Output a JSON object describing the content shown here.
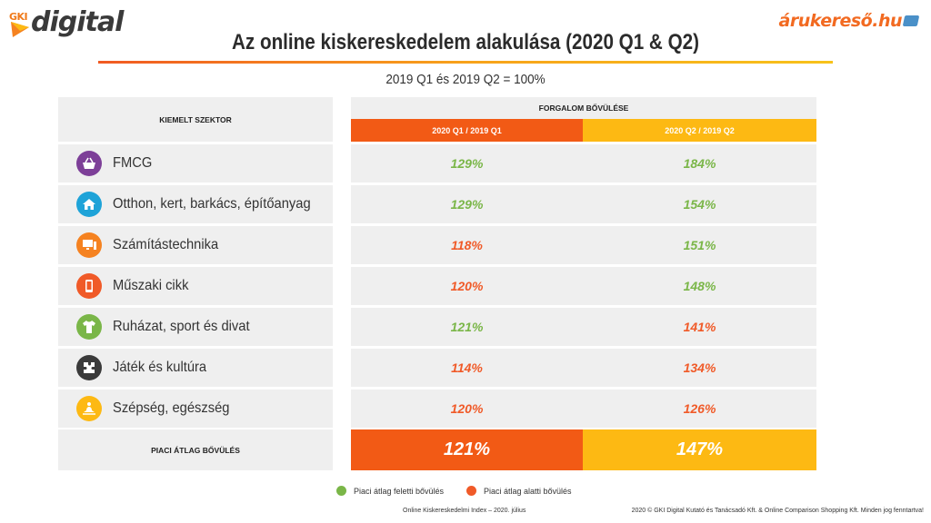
{
  "logos": {
    "left_badge": "GKI",
    "left_word": "digital",
    "right_word": "árukereső.hu"
  },
  "title": "Az online kiskereskedelem alakulása (2020 Q1 & Q2)",
  "subtitle": "2019 Q1 és 2019 Q2 = 100%",
  "table": {
    "sector_header": "KIEMELT SZEKTOR",
    "growth_header": "FORGALOM BŐVÜLÉSE",
    "col_q1": "2020 Q1 / 2019  Q1",
    "col_q2": "2020 Q2 / 2019  Q2",
    "rows": [
      {
        "icon": "basket-icon",
        "icon_color": "#7d3f98",
        "label": "FMCG",
        "q1": "129%",
        "q1_status": "above",
        "q2": "184%",
        "q2_status": "above"
      },
      {
        "icon": "house-garden-icon",
        "icon_color": "#1ea3d8",
        "label": "Otthon, kert, barkács, építőanyag",
        "q1": "129%",
        "q1_status": "above",
        "q2": "154%",
        "q2_status": "above"
      },
      {
        "icon": "computer-icon",
        "icon_color": "#f58220",
        "label": "Számítástechnika",
        "q1": "118%",
        "q1_status": "below",
        "q2": "151%",
        "q2_status": "above"
      },
      {
        "icon": "phone-icon",
        "icon_color": "#f05a28",
        "label": "Műszaki cikk",
        "q1": "120%",
        "q1_status": "below",
        "q2": "148%",
        "q2_status": "above"
      },
      {
        "icon": "tshirt-icon",
        "icon_color": "#7ab648",
        "label": "Ruházat, sport és divat",
        "q1": "121%",
        "q1_status": "above",
        "q2": "141%",
        "q2_status": "below"
      },
      {
        "icon": "puzzle-icon",
        "icon_color": "#3a3a3a",
        "label": "Játék és kultúra",
        "q1": "114%",
        "q1_status": "below",
        "q2": "134%",
        "q2_status": "below"
      },
      {
        "icon": "meditation-icon",
        "icon_color": "#fdb913",
        "label": "Szépség, egészség",
        "q1": "120%",
        "q1_status": "below",
        "q2": "126%",
        "q2_status": "below"
      }
    ],
    "average_label": "PIACI ÁTLAG BŐVÜLÉS",
    "average_q1": "121%",
    "average_q2": "147%"
  },
  "legend": {
    "above_label": "Piaci átlag feletti bővülés",
    "above_color": "#7ab648",
    "below_label": "Piaci átlag alatti bővülés",
    "below_color": "#f05a28"
  },
  "footer": {
    "left": "Online Kiskereskedelmi Index – 2020. július",
    "right": "2020 © GKI Digital Kutató és Tanácsadó Kft. & Online Comparison Shopping Kft. Minden jog fenntartva!"
  }
}
